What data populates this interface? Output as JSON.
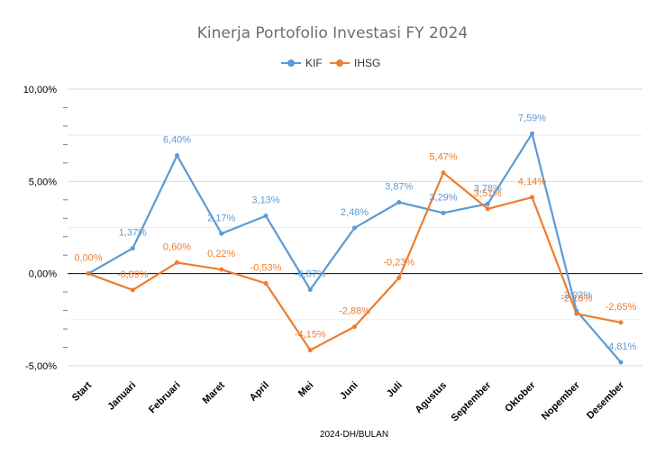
{
  "chart_data": {
    "type": "line",
    "title": "Kinerja Portofolio Investasi FY 2024",
    "xlabel": "2024-DH/BULAN",
    "ylabel": "",
    "categories": [
      "Start",
      "Januari",
      "Februari",
      "Maret",
      "April",
      "Mei",
      "Juni",
      "Juli",
      "Agustus",
      "September",
      "Oktober",
      "Nopember",
      "Desember"
    ],
    "ylim": [
      -5,
      10
    ],
    "yticks": [
      {
        "value": 10,
        "label": "10,00%"
      },
      {
        "value": 5,
        "label": "5,00%"
      },
      {
        "value": 0,
        "label": "0,00%"
      },
      {
        "value": -5,
        "label": "-5,00%"
      }
    ],
    "grid": true,
    "legend": "top-center",
    "series": [
      {
        "name": "KIF",
        "color": "#5b9bd5",
        "values": [
          0.0,
          1.37,
          6.4,
          2.17,
          3.13,
          -0.87,
          2.48,
          3.87,
          3.29,
          3.78,
          7.59,
          -2.02,
          -4.81
        ],
        "labels": [
          "",
          "1,37%",
          "6,40%",
          "2,17%",
          "3,13%",
          "-0,87%",
          "2,48%",
          "3,87%",
          "3,29%",
          "3,78%",
          "7,59%",
          "-2,02%",
          "-4,81%"
        ]
      },
      {
        "name": "IHSG",
        "color": "#ed7d31",
        "values": [
          0.0,
          -0.89,
          0.6,
          0.22,
          -0.53,
          -4.15,
          -2.88,
          -0.23,
          5.47,
          3.51,
          4.14,
          -2.18,
          -2.65
        ],
        "labels": [
          "0,00%",
          "-0,89%",
          "0,60%",
          "0,22%",
          "-0,53%",
          "-4,15%",
          "-2,88%",
          "-0,23%",
          "5,47%",
          "3,51%",
          "4,14%",
          "-2,18%",
          "-2,65%"
        ]
      }
    ]
  }
}
